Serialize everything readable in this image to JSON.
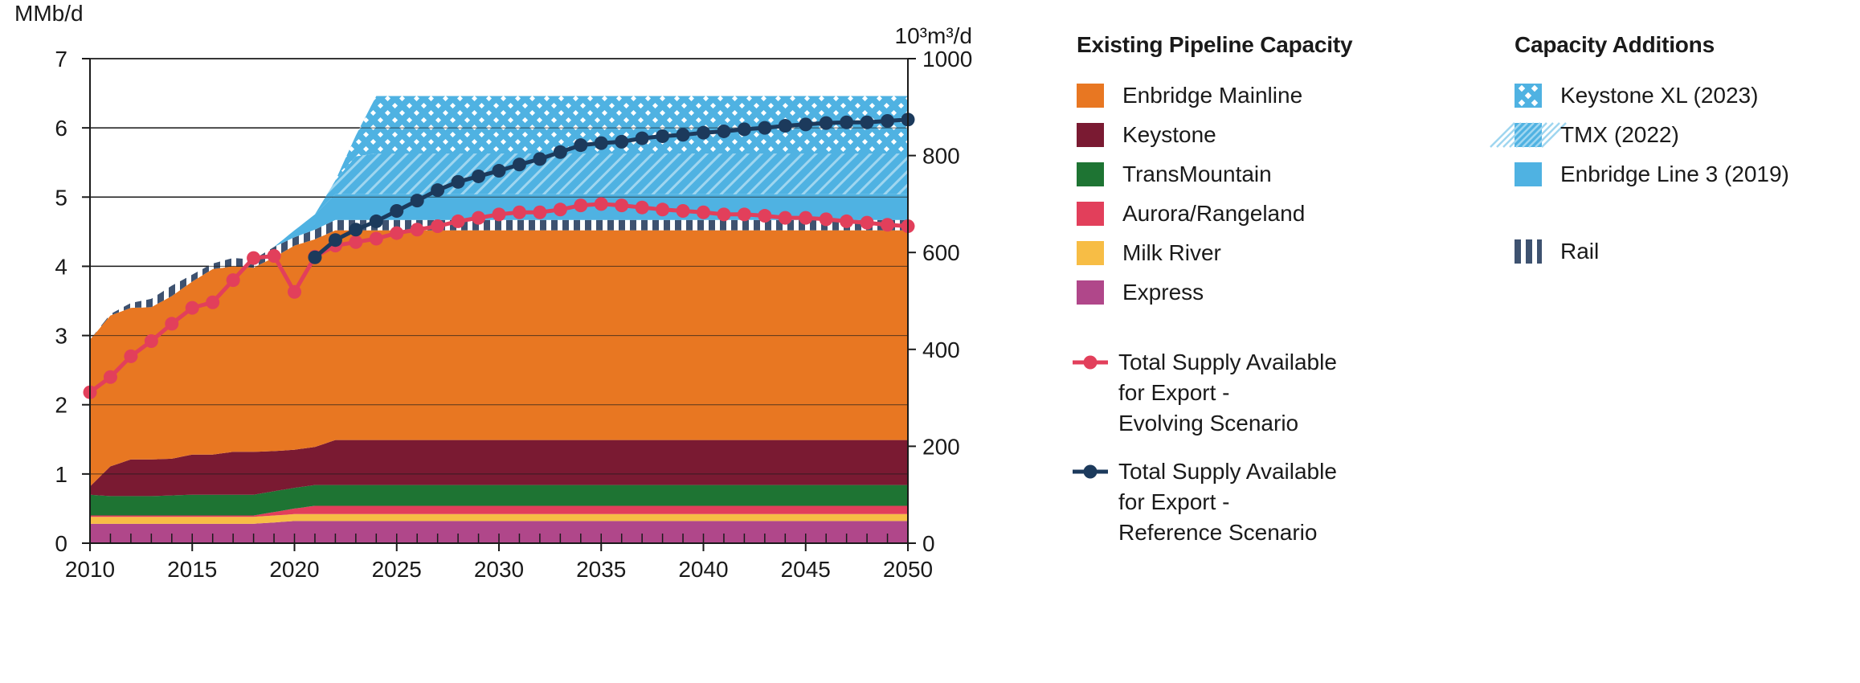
{
  "chart_data": {
    "type": "area",
    "xlim": [
      2010,
      2050
    ],
    "ylim_left": [
      0,
      7
    ],
    "ylim_right": [
      0,
      1000
    ],
    "left_unit": "MMb/d",
    "right_unit": "10³m³/d",
    "x_ticks": [
      "2010",
      "2015",
      "2020",
      "2025",
      "2030",
      "2035",
      "2040",
      "2045",
      "2050"
    ],
    "y_ticks_left": [
      "0",
      "1",
      "2",
      "3",
      "4",
      "5",
      "6",
      "7"
    ],
    "y_ticks_right": [
      "0",
      "200",
      "400",
      "600",
      "800",
      "1000"
    ],
    "stacked_areas": [
      {
        "name": "Express",
        "color": "#b0478a",
        "x": [
          2010,
          2018,
          2020,
          2021,
          2050
        ],
        "values": [
          0.28,
          0.28,
          0.32,
          0.32,
          0.32
        ]
      },
      {
        "name": "Milk River",
        "color": "#f7bd45",
        "x": [
          2010,
          2018,
          2020,
          2021,
          2050
        ],
        "values": [
          0.1,
          0.1,
          0.1,
          0.1,
          0.1
        ]
      },
      {
        "name": "Aurora/Rangeland",
        "color": "#e23f5b",
        "x": [
          2010,
          2018,
          2020,
          2021,
          2050
        ],
        "values": [
          0.02,
          0.02,
          0.08,
          0.12,
          0.12
        ]
      },
      {
        "name": "TransMountain",
        "color": "#1e7433",
        "x": [
          2010,
          2011,
          2013,
          2015,
          2016,
          2018,
          2020,
          2021,
          2022,
          2050
        ],
        "values": [
          0.3,
          0.28,
          0.28,
          0.3,
          0.3,
          0.3,
          0.3,
          0.3,
          0.3,
          0.3
        ]
      },
      {
        "name": "Keystone",
        "color": "#7a1a32",
        "x": [
          2010,
          2011,
          2012,
          2013,
          2014,
          2015,
          2016,
          2017,
          2018,
          2019,
          2020,
          2021,
          2022,
          2050
        ],
        "values": [
          0.12,
          0.43,
          0.53,
          0.53,
          0.53,
          0.58,
          0.58,
          0.62,
          0.62,
          0.58,
          0.55,
          0.55,
          0.65,
          0.65
        ]
      },
      {
        "name": "Enbridge Mainline",
        "color": "#e87722",
        "x": [
          2010,
          2011,
          2012,
          2013,
          2014,
          2015,
          2016,
          2017,
          2018,
          2019,
          2020,
          2021,
          2022,
          2050
        ],
        "values": [
          2.12,
          2.18,
          2.19,
          2.2,
          2.35,
          2.5,
          2.68,
          2.68,
          2.66,
          2.8,
          2.95,
          3.0,
          3.03,
          3.03
        ]
      },
      {
        "name": "Rail",
        "color": "#3e5270",
        "x": [
          2010,
          2011,
          2012,
          2013,
          2014,
          2015,
          2016,
          2017,
          2018,
          2019,
          2020,
          2021,
          2022,
          2050
        ],
        "values": [
          0.0,
          0.02,
          0.07,
          0.12,
          0.15,
          0.1,
          0.08,
          0.12,
          0.12,
          0.15,
          0.12,
          0.14,
          0.15,
          0.15
        ]
      },
      {
        "name": "Enbridge Line 3 (2019)",
        "color": "#4fb2e2",
        "x": [
          2010,
          2019,
          2020,
          2021,
          2022,
          2050
        ],
        "values": [
          0.0,
          0.0,
          0.1,
          0.22,
          0.37,
          0.37
        ]
      },
      {
        "name": "TMX (2022)",
        "color": "#4fb2e2",
        "x": [
          2010,
          2021,
          2022,
          2023,
          2024,
          2050
        ],
        "values": [
          0.0,
          0.0,
          0.2,
          0.55,
          0.59,
          0.59
        ]
      },
      {
        "name": "Keystone XL (2023)",
        "color": "#4fb2e2",
        "x": [
          2010,
          2022,
          2023,
          2024,
          2050
        ],
        "values": [
          0.0,
          0.0,
          0.3,
          0.83,
          0.83
        ]
      }
    ],
    "series": [
      {
        "name": "Total Supply Available for Export - Evolving Scenario",
        "color": "#e23f5b",
        "x": [
          2010,
          2011,
          2012,
          2013,
          2014,
          2015,
          2016,
          2017,
          2018,
          2019,
          2020,
          2021,
          2022,
          2023,
          2024,
          2025,
          2026,
          2027,
          2028,
          2029,
          2030,
          2031,
          2032,
          2033,
          2034,
          2035,
          2036,
          2037,
          2038,
          2039,
          2040,
          2041,
          2042,
          2043,
          2044,
          2045,
          2046,
          2047,
          2048,
          2049,
          2050
        ],
        "values": [
          2.18,
          2.4,
          2.7,
          2.92,
          3.17,
          3.4,
          3.48,
          3.8,
          4.12,
          4.15,
          3.63,
          4.14,
          4.3,
          4.35,
          4.4,
          4.48,
          4.53,
          4.58,
          4.65,
          4.7,
          4.75,
          4.78,
          4.78,
          4.82,
          4.88,
          4.9,
          4.88,
          4.85,
          4.82,
          4.8,
          4.78,
          4.75,
          4.75,
          4.73,
          4.7,
          4.7,
          4.68,
          4.65,
          4.63,
          4.6,
          4.58
        ]
      },
      {
        "name": "Total Supply Available for Export - Reference Scenario",
        "color": "#1c3a5c",
        "x": [
          2021,
          2022,
          2023,
          2024,
          2025,
          2026,
          2027,
          2028,
          2029,
          2030,
          2031,
          2032,
          2033,
          2034,
          2035,
          2036,
          2037,
          2038,
          2039,
          2040,
          2041,
          2042,
          2043,
          2044,
          2045,
          2046,
          2047,
          2048,
          2049,
          2050
        ],
        "values": [
          4.13,
          4.38,
          4.53,
          4.65,
          4.8,
          4.95,
          5.1,
          5.22,
          5.3,
          5.38,
          5.47,
          5.55,
          5.65,
          5.75,
          5.78,
          5.8,
          5.85,
          5.88,
          5.9,
          5.93,
          5.95,
          5.98,
          6.0,
          6.03,
          6.05,
          6.07,
          6.08,
          6.08,
          6.1,
          6.12
        ]
      }
    ]
  },
  "legend": {
    "existing_title": "Existing Pipeline Capacity",
    "existing": [
      {
        "label": "Enbridge Mainline",
        "color": "#e87722"
      },
      {
        "label": "Keystone",
        "color": "#7a1a32"
      },
      {
        "label": "TransMountain",
        "color": "#1e7433"
      },
      {
        "label": "Aurora/Rangeland",
        "color": "#e23f5b"
      },
      {
        "label": "Milk River",
        "color": "#f7bd45"
      },
      {
        "label": "Express",
        "color": "#b0478a"
      }
    ],
    "supply": [
      {
        "lines": [
          "Total Supply Available",
          "for Export -",
          "Evolving Scenario"
        ],
        "color": "#e23f5b"
      },
      {
        "lines": [
          "Total Supply Available",
          "for Export -",
          "Reference Scenario"
        ],
        "color": "#1c3a5c"
      }
    ],
    "additions_title": "Capacity Additions",
    "additions": [
      {
        "label": "Keystone XL (2023)",
        "pattern": "dots"
      },
      {
        "label": "TMX (2022)",
        "pattern": "hatch"
      },
      {
        "label": "Enbridge Line 3 (2019)",
        "pattern": "solid"
      }
    ],
    "rail_label": "Rail"
  }
}
